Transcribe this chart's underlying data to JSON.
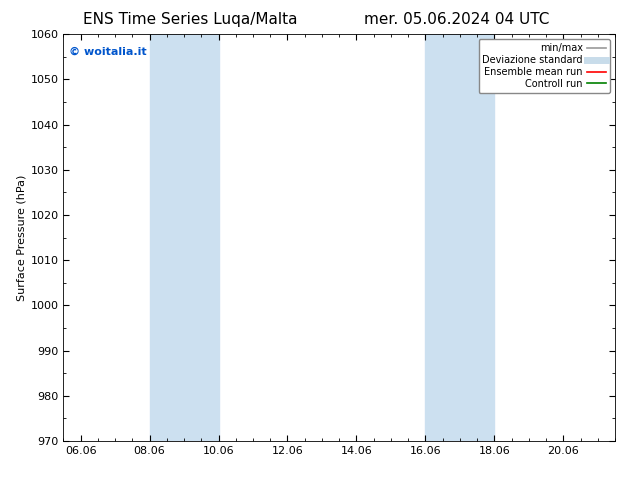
{
  "title_left": "ENS Time Series Luqa/Malta",
  "title_right": "mer. 05.06.2024 04 UTC",
  "ylabel": "Surface Pressure (hPa)",
  "ylim": [
    970,
    1060
  ],
  "yticks": [
    970,
    980,
    990,
    1000,
    1010,
    1020,
    1030,
    1040,
    1050,
    1060
  ],
  "xlim_start": 5.5,
  "xlim_end": 21.5,
  "xtick_labels": [
    "06.06",
    "08.06",
    "10.06",
    "12.06",
    "14.06",
    "16.06",
    "18.06",
    "20.06"
  ],
  "xtick_positions": [
    6.0,
    8.0,
    10.0,
    12.0,
    14.0,
    16.0,
    18.0,
    20.0
  ],
  "shaded_regions": [
    {
      "x_start": 8.0,
      "x_end": 9.0,
      "color": "#cce0f0"
    },
    {
      "x_start": 9.0,
      "x_end": 10.0,
      "color": "#cce0f0"
    },
    {
      "x_start": 16.0,
      "x_end": 17.0,
      "color": "#cce0f0"
    },
    {
      "x_start": 17.0,
      "x_end": 18.0,
      "color": "#cce0f0"
    }
  ],
  "watermark_text": "© woitalia.it",
  "watermark_color": "#0055cc",
  "legend_items": [
    {
      "label": "min/max",
      "color": "#999999",
      "lw": 1.2,
      "ls": "-"
    },
    {
      "label": "Deviazione standard",
      "color": "#c8dcea",
      "lw": 5,
      "ls": "-"
    },
    {
      "label": "Ensemble mean run",
      "color": "red",
      "lw": 1.2,
      "ls": "-"
    },
    {
      "label": "Controll run",
      "color": "green",
      "lw": 1.2,
      "ls": "-"
    }
  ],
  "background_color": "#ffffff",
  "title_fontsize": 11,
  "tick_fontsize": 8,
  "ylabel_fontsize": 8
}
